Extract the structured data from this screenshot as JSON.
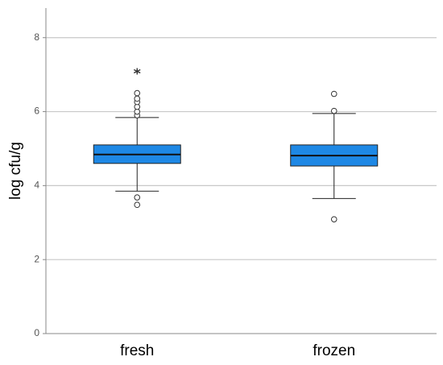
{
  "chart_data": {
    "type": "box",
    "y_label": "log cfu/g",
    "categories": [
      "fresh",
      "frozen"
    ],
    "color": "#1e88e5",
    "boxes": [
      {
        "min": 3.85,
        "q1": 4.6,
        "median": 4.84,
        "q3": 5.1,
        "max": 5.84,
        "outliers": [
          3.48,
          3.68,
          5.9,
          6.0,
          6.13,
          6.26,
          6.35,
          6.5
        ],
        "extremes": [
          7.09
        ]
      },
      {
        "min": 3.65,
        "q1": 4.53,
        "median": 4.81,
        "q3": 5.1,
        "max": 5.95,
        "outliers": [
          3.09,
          6.02,
          6.48
        ],
        "extremes": []
      }
    ],
    "ylim": [
      0,
      8.8
    ],
    "yticks": [
      0,
      2,
      4,
      6,
      8
    ],
    "grid": true
  }
}
